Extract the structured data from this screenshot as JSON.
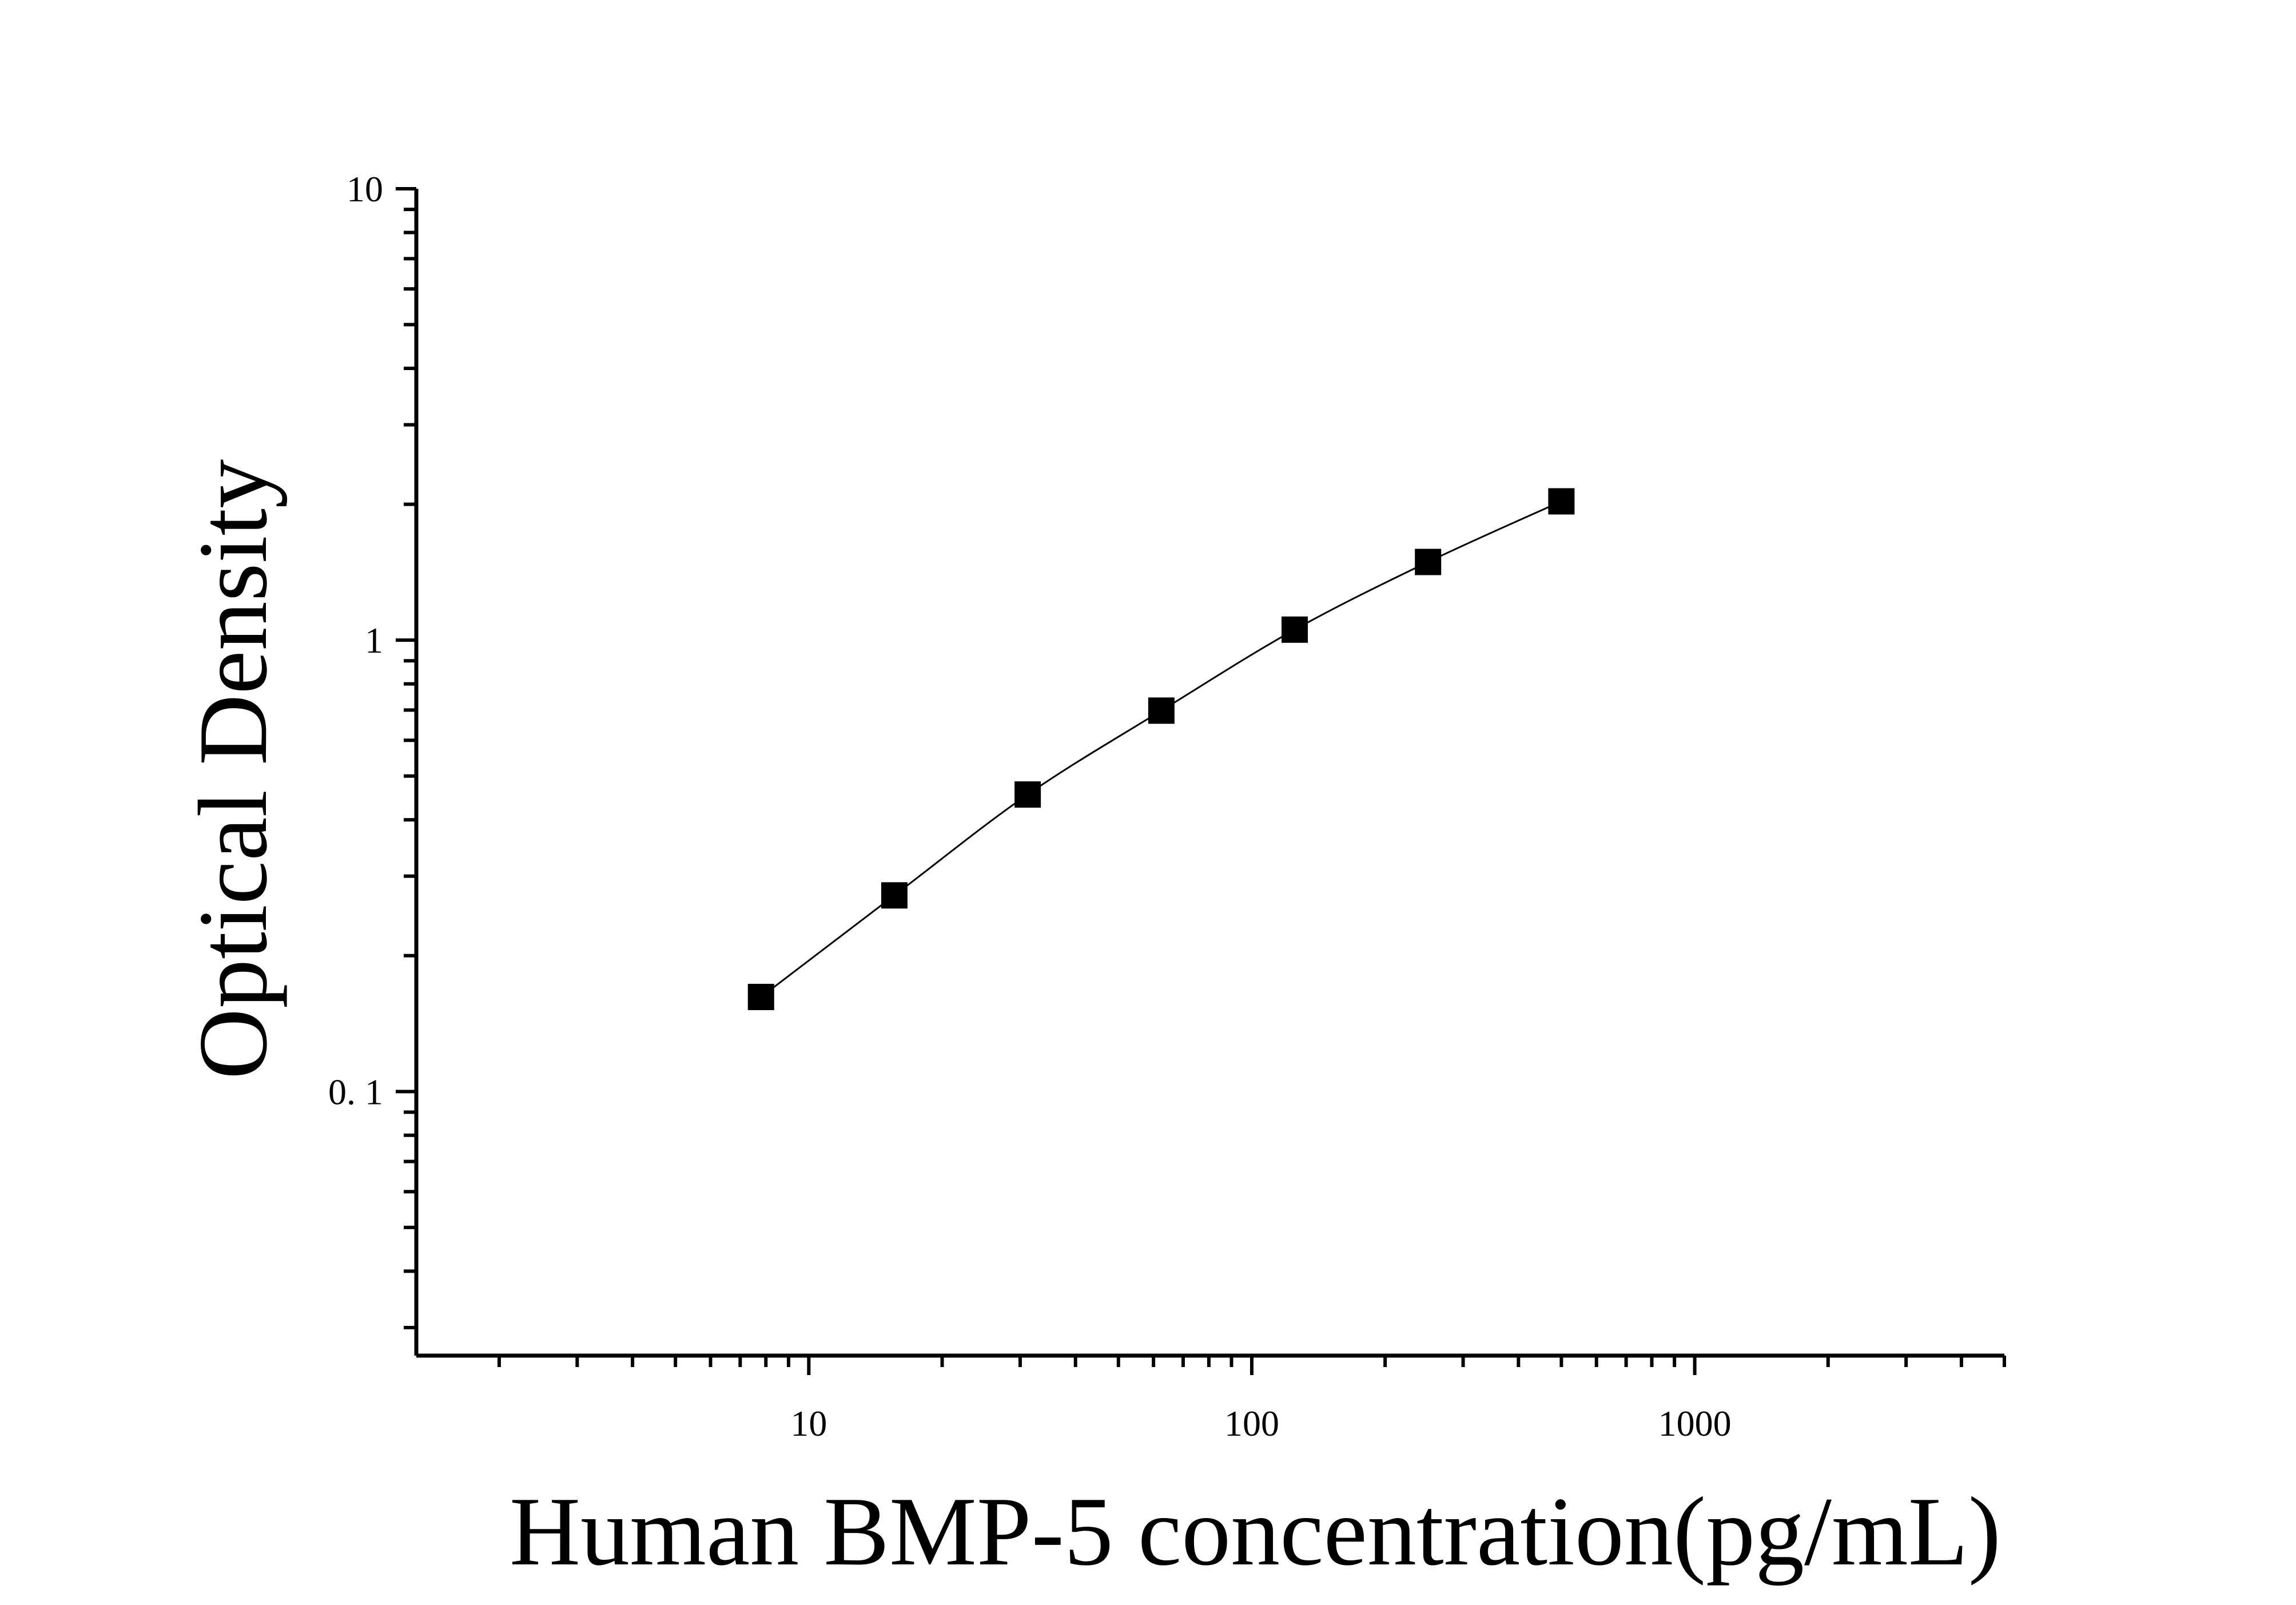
{
  "chart_data": {
    "type": "scatter",
    "title": "",
    "xlabel": "Human BMP-5 concentration(pg/mL)",
    "ylabel": "Optical Density",
    "x_scale": "log",
    "y_scale": "log",
    "xlim": [
      1.3,
      5000
    ],
    "ylim": [
      0.026,
      10
    ],
    "x_ticks": [
      {
        "value": 10,
        "label": "10"
      },
      {
        "value": 100,
        "label": "100"
      },
      {
        "value": 1000,
        "label": "1000"
      }
    ],
    "y_ticks": [
      {
        "value": 0.1,
        "label": "0. 1"
      },
      {
        "value": 1,
        "label": "1"
      },
      {
        "value": 10,
        "label": "10"
      }
    ],
    "grid": false,
    "legend": "none",
    "marker": "square",
    "color": "#000000",
    "fit_curve": true,
    "series": [
      {
        "x": [
          7.8,
          15.6,
          31.2,
          62.5,
          125,
          250,
          500
        ],
        "y": [
          0.162,
          0.272,
          0.455,
          0.698,
          1.055,
          1.49,
          2.03
        ]
      }
    ]
  }
}
